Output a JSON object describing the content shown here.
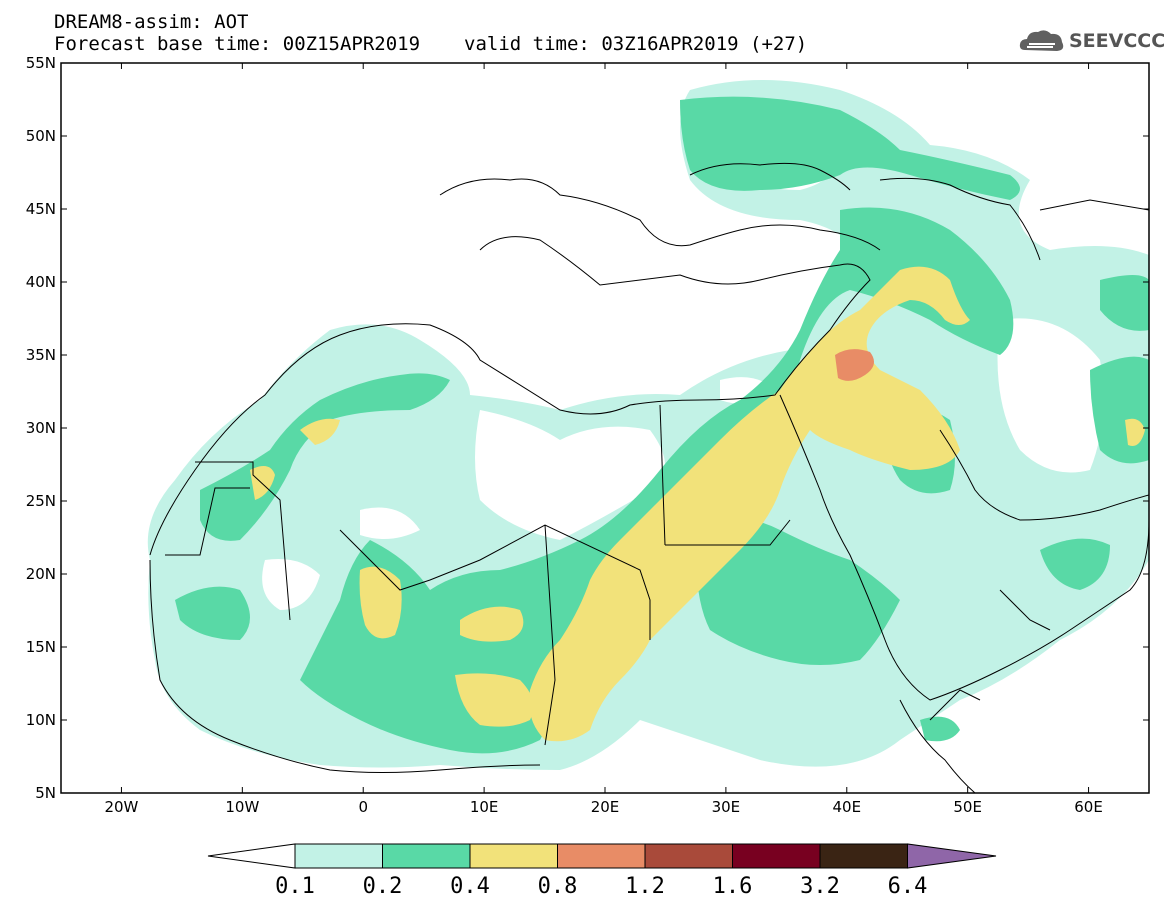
{
  "header": {
    "line1": "DREAM8-assim: AOT",
    "line2_base": "Forecast base time: 00Z15APR2019",
    "line2_valid": "valid time: 03Z16APR2019 (+27)"
  },
  "logo": {
    "text": "SEEVCCC",
    "icon": "cloud-icon"
  },
  "map": {
    "lat_labels": [
      "55N",
      "50N",
      "45N",
      "40N",
      "35N",
      "30N",
      "25N",
      "20N",
      "15N",
      "10N",
      "5N"
    ],
    "lon_labels": [
      "20W",
      "10W",
      "0",
      "10E",
      "20E",
      "30E",
      "40E",
      "50E",
      "60E"
    ]
  },
  "colorbar": {
    "labels": [
      "0.1",
      "0.2",
      "0.4",
      "0.8",
      "1.2",
      "1.6",
      "3.2",
      "6.4"
    ],
    "colors": [
      "#ffffff",
      "#c2f2e6",
      "#59d9a6",
      "#f2e27a",
      "#e88c66",
      "#a94a3a",
      "#780020",
      "#3a2414",
      "#8f66a8"
    ]
  }
}
